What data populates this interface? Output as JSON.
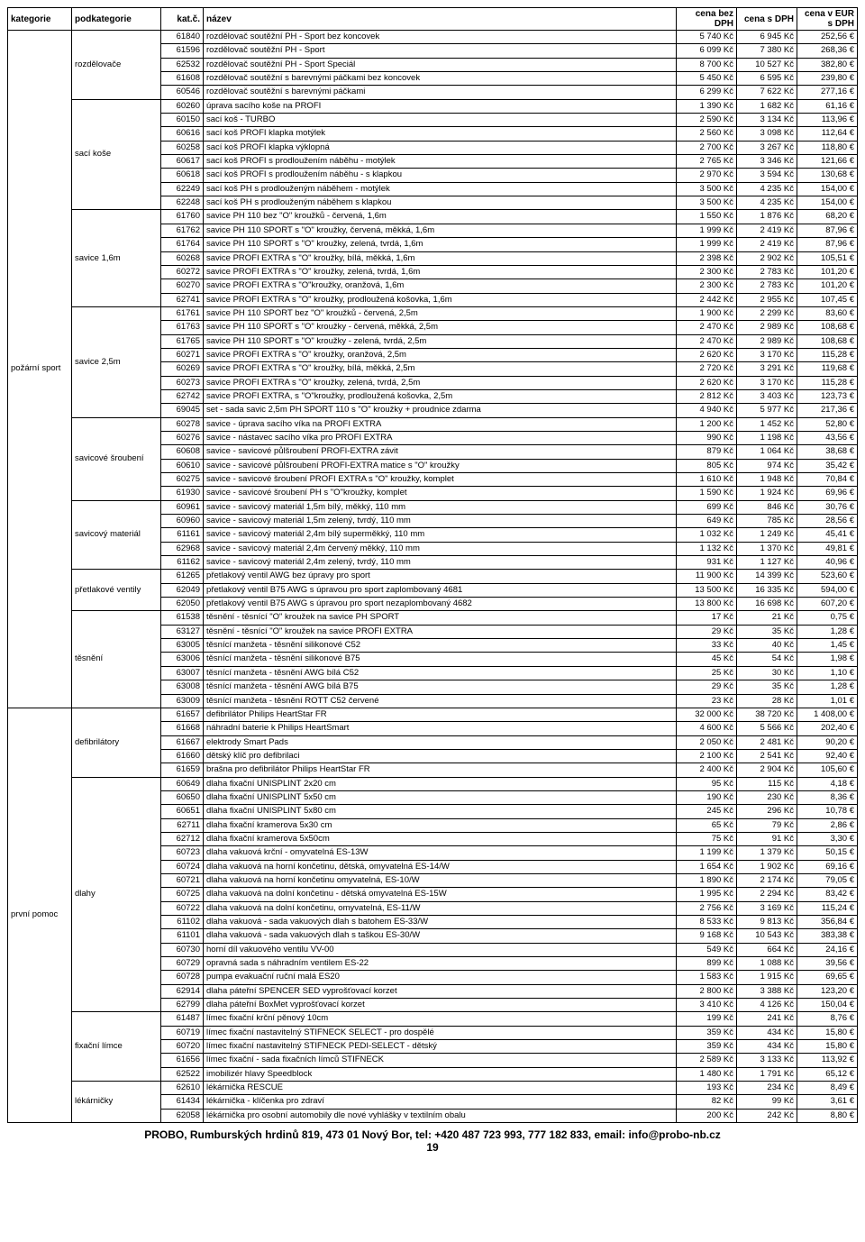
{
  "headers": {
    "kategorie": "kategorie",
    "podkategorie": "podkategorie",
    "katc": "kat.č.",
    "nazev": "název",
    "cenabez": "cena bez DPH",
    "cenas": "cena s DPH",
    "eur": "cena v EUR s DPH"
  },
  "footer": "PROBO, Rumburských hrdinů 819, 473 01 Nový Bor, tel: +420 487 723 993, 777 182 833, email: info@probo-nb.cz",
  "page": "19",
  "groups": [
    {
      "kategorie": "požární sport",
      "subs": [
        {
          "pod": "rozdělovače",
          "rows": [
            [
              "61840",
              "rozdělovač soutěžní PH - Sport bez koncovek",
              "5 740 Kč",
              "6 945 Kč",
              "252,56 €"
            ],
            [
              "61596",
              "rozdělovač soutěžní PH - Sport",
              "6 099 Kč",
              "7 380 Kč",
              "268,36 €"
            ],
            [
              "62532",
              "rozdělovač soutěžní PH - Sport Speciál",
              "8 700 Kč",
              "10 527 Kč",
              "382,80 €"
            ],
            [
              "61608",
              "rozdělovač soutěžní  s barevnými páčkami bez koncovek",
              "5 450 Kč",
              "6 595 Kč",
              "239,80 €"
            ],
            [
              "60546",
              "rozdělovač soutěžní s barevnými páčkami",
              "6 299 Kč",
              "7 622 Kč",
              "277,16 €"
            ]
          ]
        },
        {
          "pod": "sací koše",
          "rows": [
            [
              "60260",
              "úprava sacího koše na PROFI",
              "1 390 Kč",
              "1 682 Kč",
              "61,16 €"
            ],
            [
              "60150",
              "sací koš - TURBO",
              "2 590 Kč",
              "3 134 Kč",
              "113,96 €"
            ],
            [
              "60616",
              "sací koš PROFI klapka motýlek",
              "2 560 Kč",
              "3 098 Kč",
              "112,64 €"
            ],
            [
              "60258",
              "sací koš PROFI klapka výklopná",
              "2 700 Kč",
              "3 267 Kč",
              "118,80 €"
            ],
            [
              "60617",
              "sací koš PROFI  s prodloužením náběhu - motýlek",
              "2 765 Kč",
              "3 346 Kč",
              "121,66 €"
            ],
            [
              "60618",
              "sací koš PROFI  s prodloužením náběhu - s klapkou",
              "2 970 Kč",
              "3 594 Kč",
              "130,68 €"
            ],
            [
              "62249",
              "sací koš PH s prodlouženým náběhem - motýlek",
              "3 500 Kč",
              "4 235 Kč",
              "154,00 €"
            ],
            [
              "62248",
              "sací koš PH s prodlouženým náběhem s klapkou",
              "3 500 Kč",
              "4 235 Kč",
              "154,00 €"
            ]
          ]
        },
        {
          "pod": "savice 1,6m",
          "rows": [
            [
              "61760",
              "savice PH 110 bez \"O\" kroužků - červená, 1,6m",
              "1 550 Kč",
              "1 876 Kč",
              "68,20 €"
            ],
            [
              "61762",
              "savice PH 110 SPORT  s \"O\" kroužky, červená, měkká,  1,6m",
              "1 999 Kč",
              "2 419 Kč",
              "87,96 €"
            ],
            [
              "61764",
              "savice PH 110 SPORT s \"O\" kroužky, zelená, tvrdá, 1,6m",
              "1 999 Kč",
              "2 419 Kč",
              "87,96 €"
            ],
            [
              "60268",
              "savice PROFI EXTRA s \"O\" kroužky, bílá, měkká, 1,6m",
              "2 398 Kč",
              "2 902 Kč",
              "105,51 €"
            ],
            [
              "60272",
              "savice PROFI EXTRA s \"O\" kroužky,  zelená, tvrdá, 1,6m",
              "2 300 Kč",
              "2 783 Kč",
              "101,20 €"
            ],
            [
              "60270",
              "savice PROFI EXTRA s \"O\"kroužky, oranžová, 1,6m",
              "2 300 Kč",
              "2 783 Kč",
              "101,20 €"
            ],
            [
              "62741",
              "savice PROFI EXTRA s \"O\" kroužky, prodloužená košovka, 1,6m",
              "2 442 Kč",
              "2 955 Kč",
              "107,45 €"
            ]
          ]
        },
        {
          "pod": "savice 2,5m",
          "rows": [
            [
              "61761",
              "savice PH 110 SPORT bez \"O\" kroužků - červená, 2,5m",
              "1 900 Kč",
              "2 299 Kč",
              "83,60 €"
            ],
            [
              "61763",
              "savice PH 110 SPORT s \"O\" kroužky - červená, měkká, 2,5m",
              "2 470 Kč",
              "2 989 Kč",
              "108,68 €"
            ],
            [
              "61765",
              "savice PH 110 SPORT s \"O\" kroužky - zelená, tvrdá, 2,5m",
              "2 470 Kč",
              "2 989 Kč",
              "108,68 €"
            ],
            [
              "60271",
              "savice PROFI EXTRA s \"O\" kroužky, oranžová,  2,5m",
              "2 620 Kč",
              "3 170 Kč",
              "115,28 €"
            ],
            [
              "60269",
              "savice PROFI EXTRA s \"O\" kroužky,  bílá, měkká,  2,5m",
              "2 720 Kč",
              "3 291 Kč",
              "119,68 €"
            ],
            [
              "60273",
              "savice PROFI EXTRA s \"O\" kroužky, zelená, tvrdá, 2,5m",
              "2 620 Kč",
              "3 170 Kč",
              "115,28 €"
            ],
            [
              "62742",
              "savice PROFI EXTRA, s \"O\"kroužky, prodloužená košovka, 2,5m",
              "2 812 Kč",
              "3 403 Kč",
              "123,73 €"
            ],
            [
              "69045",
              "set - sada savic 2,5m PH SPORT 110 s \"O\" kroužky + proudnice zdarma",
              "4 940 Kč",
              "5 977 Kč",
              "217,36 €"
            ]
          ]
        },
        {
          "pod": "savicové šroubení",
          "rows": [
            [
              "60278",
              "savice - úprava sacího víka na PROFI EXTRA",
              "1 200 Kč",
              "1 452 Kč",
              "52,80 €"
            ],
            [
              "60276",
              "savice - nástavec sacího víka pro PROFI EXTRA",
              "990 Kč",
              "1 198 Kč",
              "43,56 €"
            ],
            [
              "60608",
              "savice - savicové půlšroubení PROFI-EXTRA závit",
              "879 Kč",
              "1 064 Kč",
              "38,68 €"
            ],
            [
              "60610",
              "savice - savicové půlšroubení PROFI-EXTRA matice s \"O\" kroužky",
              "805 Kč",
              "974 Kč",
              "35,42 €"
            ],
            [
              "60275",
              "savice - savicové šroubení PROFI EXTRA s \"O\" kroužky, komplet",
              "1 610 Kč",
              "1 948 Kč",
              "70,84 €"
            ],
            [
              "61930",
              "savice - savicové šroubení PH s \"O\"kroužky, komplet",
              "1 590 Kč",
              "1 924 Kč",
              "69,96 €"
            ]
          ]
        },
        {
          "pod": "savicový materiál",
          "rows": [
            [
              "60961",
              "savice - savicový materiál 1,5m bílý, měkký, 110 mm",
              "699 Kč",
              "846 Kč",
              "30,76 €"
            ],
            [
              "60960",
              "savice - savicový materiál 1,5m zelený, tvrdý, 110 mm",
              "649 Kč",
              "785 Kč",
              "28,56 €"
            ],
            [
              "61161",
              "savice - savicový materiál 2,4m bílý superměkký, 110 mm",
              "1 032 Kč",
              "1 249 Kč",
              "45,41 €"
            ],
            [
              "62968",
              "savice - savicový materiál 2,4m červený měkký, 110 mm",
              "1 132 Kč",
              "1 370 Kč",
              "49,81 €"
            ],
            [
              "61162",
              "savice - savicový materiál 2,4m zelený, tvrdý, 110 mm",
              "931 Kč",
              "1 127 Kč",
              "40,96 €"
            ]
          ]
        },
        {
          "pod": "přetlakové ventily",
          "rows": [
            [
              "61265",
              "přetlakový ventil AWG bez úpravy pro sport",
              "11 900 Kč",
              "14 399 Kč",
              "523,60 €"
            ],
            [
              "62049",
              "přetlakový ventil B75 AWG s úpravou pro sport zaplombovaný 4681",
              "13 500 Kč",
              "16 335 Kč",
              "594,00 €"
            ],
            [
              "62050",
              "přetlakový ventil B75 AWG s úpravou pro sport nezaplombovaný 4682",
              "13 800 Kč",
              "16 698 Kč",
              "607,20 €"
            ]
          ]
        },
        {
          "pod": "těsnění",
          "rows": [
            [
              "61538",
              "těsnění - těsnící \"O\" kroužek na savice PH SPORT",
              "17 Kč",
              "21 Kč",
              "0,75 €"
            ],
            [
              "63127",
              "těsnění - těsnící \"O\" kroužek na savice PROFI EXTRA",
              "29 Kč",
              "35 Kč",
              "1,28 €"
            ],
            [
              "63005",
              "těsnící manžeta - těsnění silikonové C52",
              "33 Kč",
              "40 Kč",
              "1,45 €"
            ],
            [
              "63006",
              "těsnící manžeta - těsnění silikonové B75",
              "45 Kč",
              "54 Kč",
              "1,98 €"
            ],
            [
              "63007",
              "těsnící manžeta - těsnění AWG bílá C52",
              "25 Kč",
              "30 Kč",
              "1,10 €"
            ],
            [
              "63008",
              "těsnící manžeta - těsnění AWG bílá B75",
              "29 Kč",
              "35 Kč",
              "1,28 €"
            ],
            [
              "63009",
              "těsnící manžeta - těsnění ROTT C52 červené",
              "23 Kč",
              "28 Kč",
              "1,01 €"
            ]
          ]
        }
      ]
    },
    {
      "kategorie": "první pomoc",
      "subs": [
        {
          "pod": "defibrilátory",
          "rows": [
            [
              "61657",
              "defibrilátor Philips HeartStar FR",
              "32 000 Kč",
              "38 720 Kč",
              "1 408,00 €"
            ],
            [
              "61668",
              "náhradní baterie k Philips HeartSmart",
              "4 600 Kč",
              "5 566 Kč",
              "202,40 €"
            ],
            [
              "61667",
              "elektrody Smart Pads",
              "2 050 Kč",
              "2 481 Kč",
              "90,20 €"
            ],
            [
              "61660",
              "dětský klíč pro defibrilaci",
              "2 100 Kč",
              "2 541 Kč",
              "92,40 €"
            ],
            [
              "61659",
              "brašna pro defibrilátor Philips HeartStar FR",
              "2 400 Kč",
              "2 904 Kč",
              "105,60 €"
            ]
          ]
        },
        {
          "pod": "dlahy",
          "rows": [
            [
              "60649",
              "dlaha fixační UNISPLINT 2x20 cm",
              "95 Kč",
              "115 Kč",
              "4,18 €"
            ],
            [
              "60650",
              "dlaha fixační UNISPLINT 5x50 cm",
              "190 Kč",
              "230 Kč",
              "8,36 €"
            ],
            [
              "60651",
              "dlaha fixační UNISPLINT 5x80 cm",
              "245 Kč",
              "296 Kč",
              "10,78 €"
            ],
            [
              "62711",
              "dlaha fixační kramerova 5x30 cm",
              "65 Kč",
              "79 Kč",
              "2,86 €"
            ],
            [
              "62712",
              "dlaha fixační kramerova 5x50cm",
              "75 Kč",
              "91 Kč",
              "3,30 €"
            ],
            [
              "60723",
              "dlaha vakuová krční - omyvatelná ES-13W",
              "1 199 Kč",
              "1 379 Kč",
              "50,15 €"
            ],
            [
              "60724",
              "dlaha vakuová na horní končetinu, dětská, omyvatelná ES-14/W",
              "1 654 Kč",
              "1 902 Kč",
              "69,16 €"
            ],
            [
              "60721",
              "dlaha vakuová na horní končetinu omyvatelná, ES-10/W",
              "1 890 Kč",
              "2 174 Kč",
              "79,05 €"
            ],
            [
              "60725",
              "dlaha vakuová na dolní končetinu - dětská omyvatelná ES-15W",
              "1 995 Kč",
              "2 294 Kč",
              "83,42 €"
            ],
            [
              "60722",
              "dlaha vakuová na dolní končetinu, omyvatelná, ES-11/W",
              "2 756 Kč",
              "3 169 Kč",
              "115,24 €"
            ],
            [
              "61102",
              "dlaha vakuová - sada vakuových dlah s batohem ES-33/W",
              "8 533 Kč",
              "9 813 Kč",
              "356,84 €"
            ],
            [
              "61101",
              "dlaha vakuová - sada vakuových dlah s taškou ES-30/W",
              "9 168 Kč",
              "10 543 Kč",
              "383,38 €"
            ],
            [
              "60730",
              "horní díl vakuového ventilu VV-00",
              "549 Kč",
              "664 Kč",
              "24,16 €"
            ],
            [
              "60729",
              "opravná sada s náhradním ventilem ES-22",
              "899 Kč",
              "1 088 Kč",
              "39,56 €"
            ],
            [
              "60728",
              "pumpa evakuační ruční malá ES20",
              "1 583 Kč",
              "1 915 Kč",
              "69,65 €"
            ],
            [
              "62914",
              "dlaha páteřní SPENCER SED vyprošťovací korzet",
              "2 800 Kč",
              "3 388 Kč",
              "123,20 €"
            ],
            [
              "62799",
              "dlaha páteřní  BoxMet  vyprošťovací korzet",
              "3 410 Kč",
              "4 126 Kč",
              "150,04 €"
            ]
          ]
        },
        {
          "pod": "fixační límce",
          "rows": [
            [
              "61487",
              "límec fixační  krční pěnový 10cm",
              "199 Kč",
              "241 Kč",
              "8,76 €"
            ],
            [
              "60719",
              "límec fixační nastavitelný STIFNECK SELECT - pro dospělé",
              "359 Kč",
              "434 Kč",
              "15,80 €"
            ],
            [
              "60720",
              "límec fixační  nastavitelný STIFNECK  PEDI-SELECT - dětský",
              "359 Kč",
              "434 Kč",
              "15,80 €"
            ],
            [
              "61656",
              "límec fixační  - sada fixačních límců STIFNECK",
              "2 589 Kč",
              "3 133 Kč",
              "113,92 €"
            ],
            [
              "62522",
              "imobilizér hlavy Speedblock",
              "1 480 Kč",
              "1 791 Kč",
              "65,12 €"
            ]
          ]
        },
        {
          "pod": "lékárničky",
          "rows": [
            [
              "62610",
              "lékárnička RESCUE",
              "193 Kč",
              "234 Kč",
              "8,49 €"
            ],
            [
              "61434",
              "lékárnička - klíčenka pro zdraví",
              "82 Kč",
              "99 Kč",
              "3,61 €"
            ],
            [
              "62058",
              "lékárnička pro osobní automobily dle nové vyhlášky v textilním obalu",
              "200 Kč",
              "242 Kč",
              "8,80 €"
            ]
          ]
        }
      ]
    }
  ]
}
